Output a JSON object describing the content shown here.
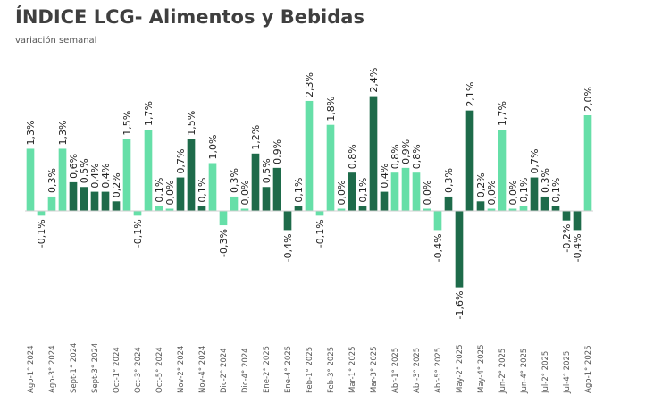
{
  "chart_data": {
    "type": "bar",
    "title": "ÍNDICE LCG- Alimentos y Bebidas",
    "subtitle": "variación semanal",
    "xlabel": "",
    "ylabel": "",
    "ylim": [
      -1.6,
      2.4
    ],
    "grid": false,
    "legend": "none",
    "colors": {
      "light": "#66dfa8",
      "dark": "#1e6b4a",
      "zero_line": "#d0d0d0"
    },
    "bars": [
      {
        "value": 1.3,
        "label": "1,3%",
        "tick": "Ago-1° 2024",
        "color": "light"
      },
      {
        "value": -0.1,
        "label": "-0,1%",
        "tick": "",
        "color": "light"
      },
      {
        "value": 0.3,
        "label": "0,3%",
        "tick": "Ago-3° 2024",
        "color": "light"
      },
      {
        "value": 1.3,
        "label": "1,3%",
        "tick": "",
        "color": "light"
      },
      {
        "value": 0.6,
        "label": "0,6%",
        "tick": "Sept-1° 2024",
        "color": "dark"
      },
      {
        "value": 0.5,
        "label": "0,5%",
        "tick": "",
        "color": "dark"
      },
      {
        "value": 0.4,
        "label": "0,4%",
        "tick": "Sept-3° 2024",
        "color": "dark"
      },
      {
        "value": 0.4,
        "label": "0,4%",
        "tick": "",
        "color": "dark"
      },
      {
        "value": 0.2,
        "label": "0,2%",
        "tick": "Oct-1° 2024",
        "color": "dark"
      },
      {
        "value": 1.5,
        "label": "1,5%",
        "tick": "",
        "color": "light"
      },
      {
        "value": -0.1,
        "label": "-0,1%",
        "tick": "Oct-3° 2024",
        "color": "light"
      },
      {
        "value": 1.7,
        "label": "1,7%",
        "tick": "",
        "color": "light"
      },
      {
        "value": 0.1,
        "label": "0,1%",
        "tick": "Oct-5° 2024",
        "color": "light"
      },
      {
        "value": 0.0,
        "label": "0,0%",
        "tick": "",
        "color": "light"
      },
      {
        "value": 0.7,
        "label": "0,7%",
        "tick": "Nov-2° 2024",
        "color": "dark"
      },
      {
        "value": 1.5,
        "label": "1,5%",
        "tick": "",
        "color": "dark"
      },
      {
        "value": 0.1,
        "label": "0,1%",
        "tick": "Nov-4° 2024",
        "color": "dark"
      },
      {
        "value": 1.0,
        "label": "1,0%",
        "tick": "",
        "color": "light"
      },
      {
        "value": -0.3,
        "label": "-0,3%",
        "tick": "Dic-2° 2024",
        "color": "light"
      },
      {
        "value": 0.3,
        "label": "0,3%",
        "tick": "",
        "color": "light"
      },
      {
        "value": 0.0,
        "label": "0,0%",
        "tick": "Dic-4° 2024",
        "color": "light"
      },
      {
        "value": 1.2,
        "label": "1,2%",
        "tick": "",
        "color": "dark"
      },
      {
        "value": 0.5,
        "label": "0,5%",
        "tick": "Ene-2° 2025",
        "color": "dark"
      },
      {
        "value": 0.9,
        "label": "0,9%",
        "tick": "",
        "color": "dark"
      },
      {
        "value": -0.4,
        "label": "-0,4%",
        "tick": "Ene-4° 2025",
        "color": "dark"
      },
      {
        "value": 0.1,
        "label": "0,1%",
        "tick": "",
        "color": "dark"
      },
      {
        "value": 2.3,
        "label": "2,3%",
        "tick": "Feb-1° 2025",
        "color": "light"
      },
      {
        "value": -0.1,
        "label": "-0,1%",
        "tick": "",
        "color": "light"
      },
      {
        "value": 1.8,
        "label": "1,8%",
        "tick": "Feb-3° 2025",
        "color": "light"
      },
      {
        "value": 0.0,
        "label": "0,0%",
        "tick": "",
        "color": "light"
      },
      {
        "value": 0.8,
        "label": "0,8%",
        "tick": "Mar-1° 2025",
        "color": "dark"
      },
      {
        "value": 0.1,
        "label": "0,1%",
        "tick": "",
        "color": "dark"
      },
      {
        "value": 2.4,
        "label": "2,4%",
        "tick": "Mar-3° 2025",
        "color": "dark"
      },
      {
        "value": 0.4,
        "label": "0,4%",
        "tick": "",
        "color": "dark"
      },
      {
        "value": 0.8,
        "label": "0,8%",
        "tick": "Abr-1° 2025",
        "color": "light"
      },
      {
        "value": 0.9,
        "label": "0,9%",
        "tick": "",
        "color": "light"
      },
      {
        "value": 0.8,
        "label": "0,8%",
        "tick": "Abr-3° 2025",
        "color": "light"
      },
      {
        "value": 0.0,
        "label": "0,0%",
        "tick": "",
        "color": "light"
      },
      {
        "value": -0.4,
        "label": "-0,4%",
        "tick": "Abr-5° 2025",
        "color": "light"
      },
      {
        "value": 0.3,
        "label": "0,3%",
        "tick": "",
        "color": "dark"
      },
      {
        "value": -1.6,
        "label": "-1,6%",
        "tick": "May-2° 2025",
        "color": "dark"
      },
      {
        "value": 2.1,
        "label": "2,1%",
        "tick": "",
        "color": "dark"
      },
      {
        "value": 0.2,
        "label": "0,2%",
        "tick": "May-4° 2025",
        "color": "dark"
      },
      {
        "value": 0.0,
        "label": "0,0%",
        "tick": "",
        "color": "light"
      },
      {
        "value": 1.7,
        "label": "1,7%",
        "tick": "Jun-2° 2025",
        "color": "light"
      },
      {
        "value": 0.0,
        "label": "0,0%",
        "tick": "",
        "color": "light"
      },
      {
        "value": 0.1,
        "label": "0,1%",
        "tick": "Jun-4° 2025",
        "color": "light"
      },
      {
        "value": 0.7,
        "label": "0,7%",
        "tick": "",
        "color": "dark"
      },
      {
        "value": 0.3,
        "label": "0,3%",
        "tick": "Jul-2° 2025",
        "color": "dark"
      },
      {
        "value": 0.1,
        "label": "0,1%",
        "tick": "",
        "color": "dark"
      },
      {
        "value": -0.2,
        "label": "-0,2%",
        "tick": "Jul-4° 2025",
        "color": "dark"
      },
      {
        "value": -0.4,
        "label": "-0,4%",
        "tick": "",
        "color": "dark"
      },
      {
        "value": 2.0,
        "label": "2,0%",
        "tick": "Ago-1° 2025",
        "color": "light"
      }
    ]
  }
}
